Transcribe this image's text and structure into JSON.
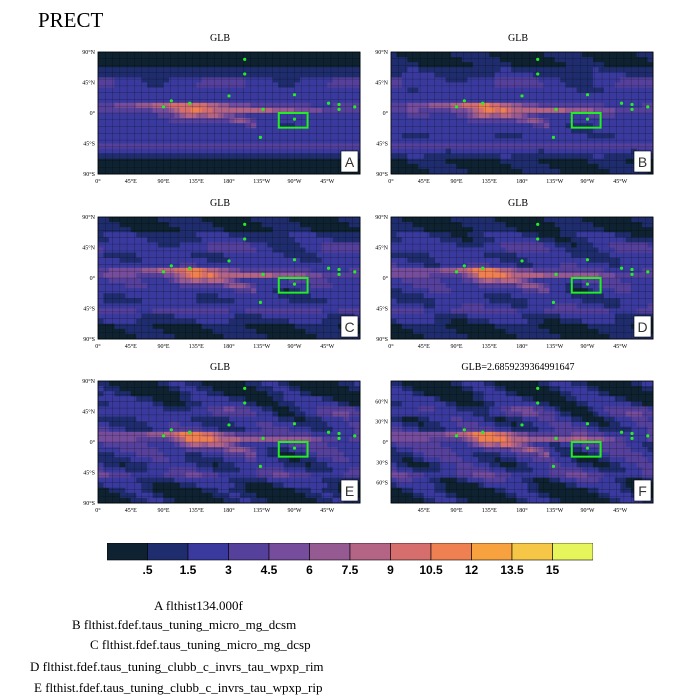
{
  "title": "PRECT",
  "panels": [
    {
      "label": "A",
      "title": "GLB",
      "lat_ticks": [
        "90°N",
        "45°N",
        "0°",
        "45°S",
        "90°S"
      ],
      "lon_ticks": [
        "0°",
        "45°E",
        "90°E",
        "135°E",
        "180°",
        "135°W",
        "90°W",
        "45°W"
      ]
    },
    {
      "label": "B",
      "title": "GLB",
      "lat_ticks": [
        "90°N",
        "45°N",
        "0°",
        "45°S",
        "90°S"
      ],
      "lon_ticks": [
        "0°",
        "45°E",
        "90°E",
        "135°E",
        "180°",
        "135°W",
        "90°W",
        "45°W"
      ]
    },
    {
      "label": "C",
      "title": "GLB",
      "lat_ticks": [
        "90°N",
        "45°N",
        "0°",
        "45°S",
        "90°S"
      ],
      "lon_ticks": [
        "0°",
        "45°E",
        "90°E",
        "135°E",
        "180°",
        "135°W",
        "90°W",
        "45°W"
      ]
    },
    {
      "label": "D",
      "title": "GLB",
      "lat_ticks": [
        "90°N",
        "45°N",
        "0°",
        "45°S",
        "90°S"
      ],
      "lon_ticks": [
        "0°",
        "45°E",
        "90°E",
        "135°E",
        "180°",
        "135°W",
        "90°W",
        "45°W"
      ]
    },
    {
      "label": "E",
      "title": "GLB",
      "lat_ticks": [
        "90°N",
        "45°N",
        "0°",
        "45°S",
        "90°S"
      ],
      "lon_ticks": [
        "0°",
        "45°E",
        "90°E",
        "135°E",
        "180°",
        "135°W",
        "90°W",
        "45°W"
      ]
    },
    {
      "label": "F",
      "title": "GLB=2.6859239364991647",
      "lat_ticks": [
        "60°N",
        "30°N",
        "0°",
        "30°S",
        "60°S"
      ],
      "lon_ticks": [
        "45°E",
        "90°E",
        "135°E",
        "180°",
        "135°W",
        "90°W",
        "45°W"
      ]
    }
  ],
  "colorbar": {
    "colors": [
      "#0e2231",
      "#1f2d6e",
      "#3a3a9e",
      "#55409c",
      "#764c9c",
      "#965a92",
      "#b46484",
      "#d56e6d",
      "#ef8052",
      "#f7a23e",
      "#f6c746",
      "#e6f55c"
    ],
    "labels": [
      ".5",
      "1.5",
      "3",
      "4.5",
      "6",
      "7.5",
      "9",
      "10.5",
      "12",
      "13.5",
      "15"
    ]
  },
  "legend": [
    "A  flthist134.000f",
    "B  flthist.fdef.taus_tuning_micro_mg_dcsm",
    "C  flthist.fdef.taus_tuning_micro_mg_dcsp",
    "D  flthist.fdef.taus_tuning_clubb_c_invrs_tau_wpxp_rim",
    "E  flthist.fdef.taus_tuning_clubb_c_invrs_tau_wpxp_rip"
  ]
}
